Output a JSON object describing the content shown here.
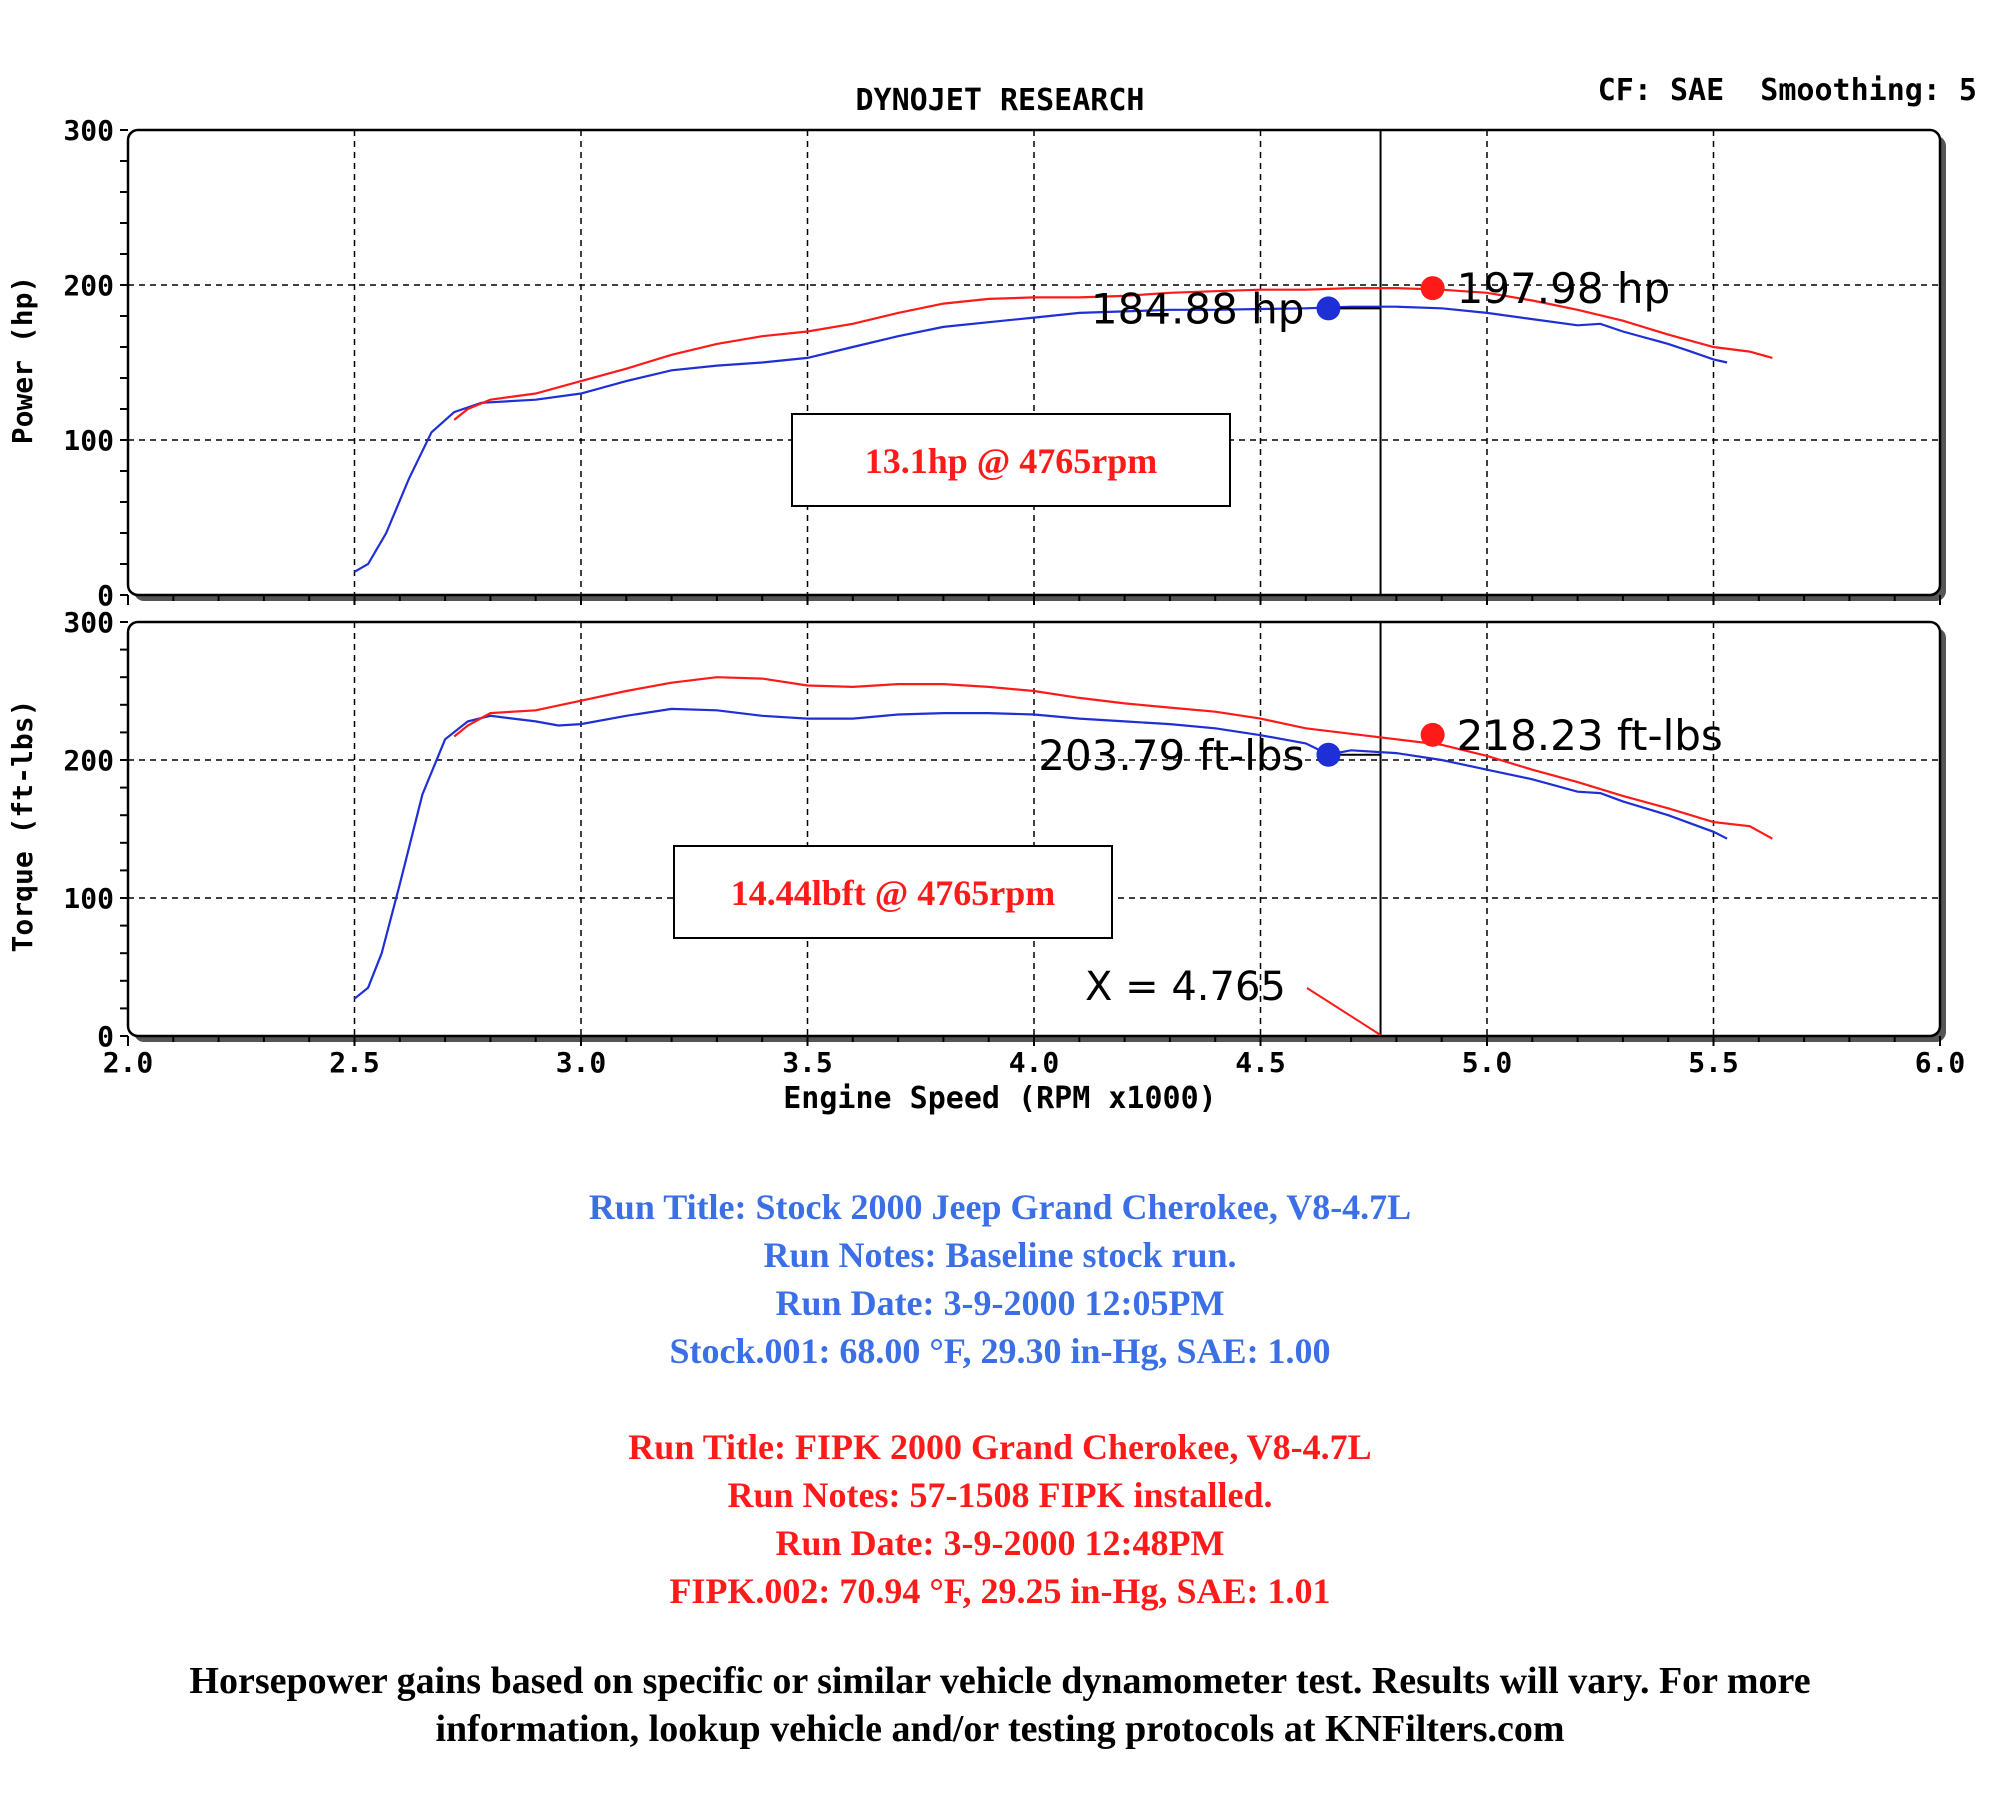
{
  "header": {
    "title": "DYNOJET RESEARCH",
    "settings": "CF: SAE  Smoothing: 5"
  },
  "colors": {
    "stock": "#1f2fd6",
    "fipk": "#ff1a1a",
    "notes_stock": "#3b6fe6",
    "notes_fipk": "#ff1a1a"
  },
  "chart_data": [
    {
      "type": "line",
      "ylabel": "Power (hp)",
      "xlabel": "Engine Speed (RPM x1000)",
      "xlim": [
        2.0,
        6.0
      ],
      "ylim": [
        0,
        300
      ],
      "x_ticks": [
        "2.0",
        "2.5",
        "3.0",
        "3.5",
        "4.0",
        "4.5",
        "5.0",
        "5.5",
        "6.0"
      ],
      "y_ticks": [
        "0",
        "100",
        "200",
        "300"
      ],
      "grid": true,
      "cursor_x": 4.765,
      "series": [
        {
          "name": "Stock",
          "color": "#1f2fd6",
          "points": [
            [
              2.5,
              15
            ],
            [
              2.53,
              20
            ],
            [
              2.57,
              40
            ],
            [
              2.62,
              75
            ],
            [
              2.67,
              105
            ],
            [
              2.72,
              118
            ],
            [
              2.78,
              124
            ],
            [
              2.9,
              126
            ],
            [
              3.0,
              130
            ],
            [
              3.1,
              138
            ],
            [
              3.2,
              145
            ],
            [
              3.3,
              148
            ],
            [
              3.4,
              150
            ],
            [
              3.5,
              153
            ],
            [
              3.6,
              160
            ],
            [
              3.7,
              167
            ],
            [
              3.8,
              173
            ],
            [
              3.9,
              176
            ],
            [
              4.0,
              179
            ],
            [
              4.1,
              182
            ],
            [
              4.2,
              183
            ],
            [
              4.3,
              184
            ],
            [
              4.4,
              184
            ],
            [
              4.5,
              184.5
            ],
            [
              4.6,
              185
            ],
            [
              4.7,
              186
            ],
            [
              4.8,
              186
            ],
            [
              4.9,
              185
            ],
            [
              5.0,
              182
            ],
            [
              5.1,
              178
            ],
            [
              5.2,
              174
            ],
            [
              5.25,
              175
            ],
            [
              5.3,
              170
            ],
            [
              5.4,
              162
            ],
            [
              5.45,
              157
            ],
            [
              5.5,
              152
            ],
            [
              5.53,
              150
            ]
          ]
        },
        {
          "name": "FIPK",
          "color": "#ff1a1a",
          "points": [
            [
              2.72,
              113
            ],
            [
              2.75,
              120
            ],
            [
              2.8,
              126
            ],
            [
              2.9,
              130
            ],
            [
              3.0,
              138
            ],
            [
              3.1,
              146
            ],
            [
              3.2,
              155
            ],
            [
              3.3,
              162
            ],
            [
              3.4,
              167
            ],
            [
              3.5,
              170
            ],
            [
              3.6,
              175
            ],
            [
              3.7,
              182
            ],
            [
              3.8,
              188
            ],
            [
              3.9,
              191
            ],
            [
              4.0,
              192
            ],
            [
              4.1,
              192
            ],
            [
              4.2,
              193
            ],
            [
              4.3,
              195
            ],
            [
              4.4,
              196
            ],
            [
              4.5,
              197
            ],
            [
              4.6,
              197
            ],
            [
              4.7,
              198
            ],
            [
              4.8,
              198
            ],
            [
              4.9,
              197
            ],
            [
              5.0,
              195
            ],
            [
              5.1,
              190
            ],
            [
              5.2,
              184
            ],
            [
              5.3,
              177
            ],
            [
              5.4,
              168
            ],
            [
              5.5,
              160
            ],
            [
              5.58,
              157
            ],
            [
              5.63,
              153
            ]
          ]
        }
      ],
      "markers": [
        {
          "series": "Stock",
          "x": 4.65,
          "y": 184.88,
          "label": "184.88 hp"
        },
        {
          "series": "FIPK",
          "x": 4.88,
          "y": 197.98,
          "label": "197.98 hp"
        }
      ],
      "annotation": "13.1hp @ 4765rpm"
    },
    {
      "type": "line",
      "ylabel": "Torque (ft-lbs)",
      "xlabel": "Engine Speed (RPM x1000)",
      "xlim": [
        2.0,
        6.0
      ],
      "ylim": [
        0,
        300
      ],
      "x_ticks": [
        "2.0",
        "2.5",
        "3.0",
        "3.5",
        "4.0",
        "4.5",
        "5.0",
        "5.5",
        "6.0"
      ],
      "y_ticks": [
        "0",
        "100",
        "200",
        "300"
      ],
      "grid": true,
      "cursor_x": 4.765,
      "series": [
        {
          "name": "Stock",
          "color": "#1f2fd6",
          "points": [
            [
              2.5,
              27
            ],
            [
              2.53,
              35
            ],
            [
              2.56,
              60
            ],
            [
              2.6,
              110
            ],
            [
              2.65,
              175
            ],
            [
              2.7,
              215
            ],
            [
              2.75,
              228
            ],
            [
              2.8,
              232
            ],
            [
              2.85,
              230
            ],
            [
              2.9,
              228
            ],
            [
              2.95,
              225
            ],
            [
              3.0,
              226
            ],
            [
              3.1,
              232
            ],
            [
              3.2,
              237
            ],
            [
              3.3,
              236
            ],
            [
              3.4,
              232
            ],
            [
              3.5,
              230
            ],
            [
              3.6,
              230
            ],
            [
              3.7,
              233
            ],
            [
              3.8,
              234
            ],
            [
              3.9,
              234
            ],
            [
              4.0,
              233
            ],
            [
              4.1,
              230
            ],
            [
              4.2,
              228
            ],
            [
              4.3,
              226
            ],
            [
              4.4,
              223
            ],
            [
              4.5,
              218
            ],
            [
              4.6,
              212
            ],
            [
              4.65,
              204
            ],
            [
              4.7,
              207
            ],
            [
              4.8,
              205
            ],
            [
              4.9,
              200
            ],
            [
              5.0,
              193
            ],
            [
              5.1,
              186
            ],
            [
              5.2,
              177
            ],
            [
              5.25,
              176
            ],
            [
              5.3,
              170
            ],
            [
              5.4,
              160
            ],
            [
              5.5,
              148
            ],
            [
              5.53,
              143
            ]
          ]
        },
        {
          "name": "FIPK",
          "color": "#ff1a1a",
          "points": [
            [
              2.72,
              217
            ],
            [
              2.75,
              225
            ],
            [
              2.8,
              234
            ],
            [
              2.9,
              236
            ],
            [
              3.0,
              243
            ],
            [
              3.1,
              250
            ],
            [
              3.2,
              256
            ],
            [
              3.3,
              260
            ],
            [
              3.4,
              259
            ],
            [
              3.5,
              254
            ],
            [
              3.6,
              253
            ],
            [
              3.7,
              255
            ],
            [
              3.8,
              255
            ],
            [
              3.9,
              253
            ],
            [
              4.0,
              250
            ],
            [
              4.1,
              245
            ],
            [
              4.2,
              241
            ],
            [
              4.3,
              238
            ],
            [
              4.4,
              235
            ],
            [
              4.5,
              230
            ],
            [
              4.6,
              223
            ],
            [
              4.7,
              219
            ],
            [
              4.8,
              215
            ],
            [
              4.9,
              211
            ],
            [
              5.0,
              203
            ],
            [
              5.1,
              193
            ],
            [
              5.2,
              184
            ],
            [
              5.3,
              174
            ],
            [
              5.4,
              165
            ],
            [
              5.5,
              155
            ],
            [
              5.58,
              152
            ],
            [
              5.63,
              143
            ]
          ]
        }
      ],
      "markers": [
        {
          "series": "Stock",
          "x": 4.65,
          "y": 203.79,
          "label": "203.79 ft-lbs"
        },
        {
          "series": "FIPK",
          "x": 4.88,
          "y": 218.23,
          "label": "218.23 ft-lbs"
        }
      ],
      "annotation": "14.44lbft @ 4765rpm",
      "cursor_label": "X = 4.765"
    }
  ],
  "notes": {
    "stock": {
      "title": "Run Title: Stock 2000 Jeep Grand Cherokee, V8-4.7L",
      "notes": "Run Notes: Baseline stock run.",
      "date": "Run Date: 3-9-2000 12:05PM",
      "conditions": "Stock.001: 68.00 °F, 29.30 in-Hg, SAE: 1.00"
    },
    "fipk": {
      "title": "Run Title: FIPK 2000 Grand Cherokee, V8-4.7L",
      "notes": "Run Notes: 57-1508 FIPK installed.",
      "date": "Run Date: 3-9-2000 12:48PM",
      "conditions": "FIPK.002: 70.94 °F, 29.25 in-Hg, SAE: 1.01"
    }
  },
  "disclaimer": {
    "line1": "Horsepower gains based on specific or similar vehicle dynamometer test. Results will vary. For more",
    "line2": "information, lookup vehicle and/or testing protocols at KNFilters.com"
  }
}
